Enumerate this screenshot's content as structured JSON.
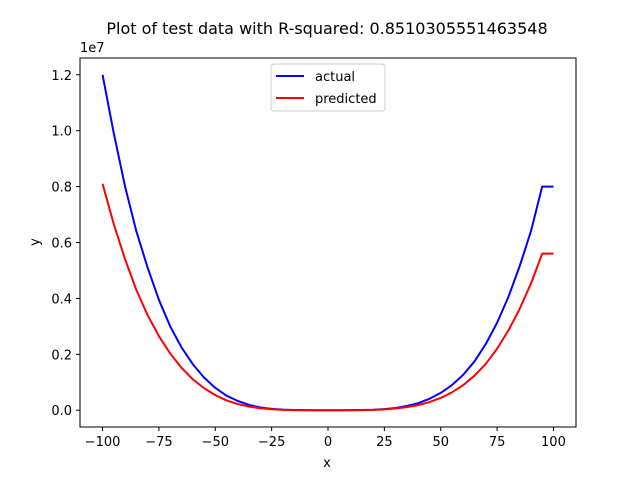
{
  "chart_data": {
    "type": "line",
    "title": "Plot of test data with R-squared: 0.8510305551463548",
    "xlabel": "x",
    "ylabel": "y",
    "y_scale_label": "1e7",
    "xlim": [
      -110,
      110
    ],
    "ylim": [
      -0.06,
      1.26
    ],
    "y_units_multiplier": 10000000,
    "x_ticks": [
      -100,
      -75,
      -50,
      -25,
      0,
      25,
      50,
      75,
      100
    ],
    "x_tick_labels": [
      "−100",
      "−75",
      "−50",
      "−25",
      "0",
      "25",
      "50",
      "75",
      "100"
    ],
    "y_ticks": [
      0.0,
      0.2,
      0.4,
      0.6,
      0.8,
      1.0,
      1.2
    ],
    "y_tick_labels": [
      "0.0",
      "0.2",
      "0.4",
      "0.6",
      "0.8",
      "1.0",
      "1.2"
    ],
    "grid": false,
    "legend_position": "top-center",
    "series": [
      {
        "name": "actual",
        "color": "#0000ff",
        "x": [
          -100,
          -95,
          -90,
          -85,
          -80,
          -75,
          -70,
          -65,
          -60,
          -55,
          -50,
          -45,
          -40,
          -35,
          -30,
          -25,
          -20,
          -15,
          -10,
          -5,
          0,
          5,
          10,
          15,
          20,
          25,
          30,
          35,
          40,
          45,
          50,
          55,
          60,
          65,
          70,
          75,
          80,
          85,
          90,
          95,
          100
        ],
        "y": [
          1.2,
          0.99,
          0.8,
          0.64,
          0.51,
          0.395,
          0.3,
          0.225,
          0.165,
          0.117,
          0.08,
          0.052,
          0.033,
          0.019,
          0.01,
          0.005,
          0.002,
          0.0008,
          0.0002,
          0.0001,
          0.0,
          0.0001,
          0.0002,
          0.0006,
          0.0016,
          0.004,
          0.008,
          0.015,
          0.025,
          0.041,
          0.062,
          0.09,
          0.127,
          0.175,
          0.237,
          0.313,
          0.405,
          0.515,
          0.64,
          0.8,
          0.8
        ]
      },
      {
        "name": "predicted",
        "color": "#ff0000",
        "x": [
          -100,
          -95,
          -90,
          -85,
          -80,
          -75,
          -70,
          -65,
          -60,
          -55,
          -50,
          -45,
          -40,
          -35,
          -30,
          -25,
          -20,
          -15,
          -10,
          -5,
          0,
          5,
          10,
          15,
          20,
          25,
          30,
          35,
          40,
          45,
          50,
          55,
          60,
          65,
          70,
          75,
          80,
          85,
          90,
          95,
          100
        ],
        "y": [
          0.81,
          0.665,
          0.54,
          0.43,
          0.34,
          0.265,
          0.203,
          0.152,
          0.111,
          0.079,
          0.054,
          0.035,
          0.022,
          0.013,
          0.007,
          0.0034,
          0.0014,
          0.0005,
          0.0001,
          0.0,
          0.0,
          0.0,
          0.0001,
          0.0004,
          0.0011,
          0.0028,
          0.006,
          0.011,
          0.018,
          0.029,
          0.044,
          0.064,
          0.09,
          0.124,
          0.166,
          0.22,
          0.285,
          0.362,
          0.453,
          0.56,
          0.56
        ]
      }
    ]
  }
}
